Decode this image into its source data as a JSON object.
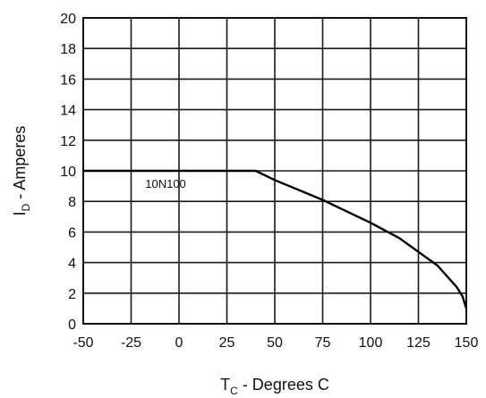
{
  "chart_data": {
    "type": "line",
    "title": "",
    "xlabel": {
      "main": "T",
      "sub": "C",
      "rest": " - Degrees C"
    },
    "ylabel": {
      "main": "I",
      "sub": "D",
      "rest": " - Amperes"
    },
    "xlim": [
      -50,
      150
    ],
    "ylim": [
      0,
      20
    ],
    "xticks": [
      -50,
      -25,
      0,
      25,
      50,
      75,
      100,
      125,
      150
    ],
    "yticks": [
      0,
      2,
      4,
      6,
      8,
      10,
      12,
      14,
      16,
      18,
      20
    ],
    "grid": true,
    "series": [
      {
        "name": "10N100",
        "x": [
          -50,
          25,
          40,
          50,
          75,
          100,
          115,
          125,
          135,
          140,
          145,
          148,
          150
        ],
        "y": [
          10,
          10,
          10,
          9.4,
          8.1,
          6.6,
          5.6,
          4.7,
          3.8,
          3.1,
          2.4,
          1.8,
          1.0
        ]
      }
    ]
  }
}
